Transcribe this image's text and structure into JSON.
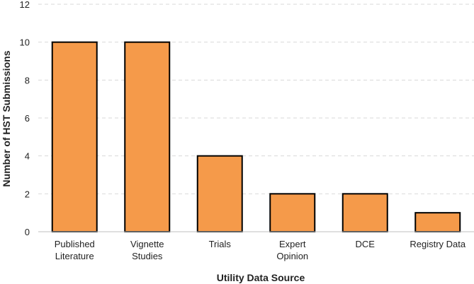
{
  "chart_data": {
    "type": "bar",
    "title": "",
    "categories": [
      [
        "Published",
        "Literature"
      ],
      [
        "Vignette",
        "Studies"
      ],
      [
        "Trials"
      ],
      [
        "Expert",
        "Opinion"
      ],
      [
        "DCE"
      ],
      [
        "Registry Data"
      ]
    ],
    "values": [
      10,
      10,
      4,
      2,
      2,
      1
    ],
    "xlabel": "Utility Data Source",
    "ylabel": "Number of HST Submissions",
    "ylim": [
      0,
      12
    ],
    "yticks": [
      0,
      2,
      4,
      6,
      8,
      10,
      12
    ],
    "grid": true,
    "legend": "none",
    "colors": {
      "bar_fill": "#F59A4A",
      "bar_stroke": "#000000",
      "grid": "#D9D9D9",
      "axis": "#BFBFBF"
    }
  }
}
